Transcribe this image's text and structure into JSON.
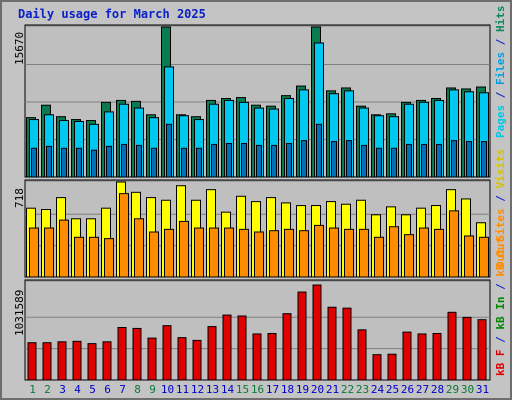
{
  "title": "Daily usage for March 2025",
  "colors": {
    "hits": "#0a8a5a",
    "files": "#00bff0",
    "sites": "#ff8c00",
    "visits": "#ffff00",
    "kbin": "#008800",
    "kbf": "#e00000",
    "pages": "#00c8e8",
    "panel_bg": "#bfbfbf",
    "title": "#0a20c8",
    "weekend_day": "#0a7a3a",
    "weekday_day": "#0000cc"
  },
  "legend_top": {
    "pages": "Pages",
    "sep1": " / ",
    "files": "Files",
    "sep2": " / ",
    "hits": "Hits"
  },
  "legend_mid": {
    "visits": "Visits",
    "sep1": " / ",
    "sites": "Sites",
    "sep2": " / "
  },
  "legend_bot": {
    "kbin": "kB In",
    "sep1": " / ",
    "kbf": "kB F",
    "sep2": " / "
  },
  "out_labels": {
    "sites_out": "Out ",
    "kb_out": "kB Out"
  },
  "chart_data": [
    {
      "type": "bar",
      "title": "Daily usage for March 2025",
      "panel": "hits-files-pages",
      "max_label": "15670",
      "ylim": [
        0,
        15670
      ],
      "categories": [
        "1",
        "2",
        "3",
        "4",
        "5",
        "6",
        "7",
        "8",
        "9",
        "10",
        "11",
        "12",
        "13",
        "14",
        "15",
        "16",
        "17",
        "18",
        "19",
        "20",
        "21",
        "22",
        "23",
        "24",
        "25",
        "26",
        "27",
        "28",
        "29",
        "30",
        "31"
      ],
      "weekend": [
        1,
        2,
        8,
        9,
        15,
        16,
        22,
        23,
        29,
        30
      ],
      "series": [
        {
          "name": "Hits",
          "values": [
            6200,
            7500,
            6300,
            6000,
            5900,
            7800,
            8000,
            7900,
            6500,
            15670,
            6500,
            6300,
            8000,
            8200,
            8300,
            7500,
            7400,
            8500,
            9500,
            15670,
            9000,
            9300,
            7400,
            6500,
            6600,
            7800,
            8000,
            8200,
            9300,
            9200,
            9400
          ]
        },
        {
          "name": "Files",
          "values": [
            6000,
            6500,
            5900,
            5800,
            5500,
            6800,
            7600,
            7200,
            6200,
            11500,
            6400,
            6000,
            7600,
            8000,
            7800,
            7200,
            7100,
            8200,
            9100,
            14000,
            8700,
            9000,
            7200,
            6400,
            6300,
            7600,
            7800,
            8000,
            9100,
            8900,
            8800
          ]
        },
        {
          "name": "Pages",
          "values": [
            3000,
            3200,
            3000,
            3000,
            2800,
            3200,
            3400,
            3300,
            3000,
            5500,
            3000,
            3000,
            3400,
            3500,
            3500,
            3300,
            3300,
            3500,
            3800,
            5500,
            3700,
            3800,
            3300,
            3000,
            3000,
            3400,
            3400,
            3400,
            3800,
            3700,
            3700
          ]
        }
      ]
    },
    {
      "type": "bar",
      "panel": "visits-sites",
      "max_label": "718",
      "ylim": [
        0,
        718
      ],
      "categories": [
        "1",
        "2",
        "3",
        "4",
        "5",
        "6",
        "7",
        "8",
        "9",
        "10",
        "11",
        "12",
        "13",
        "14",
        "15",
        "16",
        "17",
        "18",
        "19",
        "20",
        "21",
        "22",
        "23",
        "24",
        "25",
        "26",
        "27",
        "28",
        "29",
        "30",
        "31"
      ],
      "series": [
        {
          "name": "Visits",
          "values": [
            520,
            510,
            600,
            440,
            440,
            520,
            718,
            640,
            600,
            580,
            690,
            580,
            660,
            490,
            610,
            570,
            600,
            560,
            540,
            540,
            570,
            550,
            580,
            470,
            530,
            470,
            520,
            540,
            660,
            590,
            410
          ]
        },
        {
          "name": "Sites",
          "values": [
            370,
            370,
            430,
            300,
            300,
            290,
            630,
            440,
            340,
            360,
            420,
            370,
            370,
            370,
            360,
            340,
            350,
            360,
            350,
            390,
            370,
            360,
            360,
            300,
            380,
            320,
            370,
            360,
            500,
            310,
            300
          ]
        }
      ]
    },
    {
      "type": "bar",
      "panel": "kbin-kbf",
      "max_label": "1031589",
      "ylim": [
        0,
        1031589
      ],
      "categories": [
        "1",
        "2",
        "3",
        "4",
        "5",
        "6",
        "7",
        "8",
        "9",
        "10",
        "11",
        "12",
        "13",
        "14",
        "15",
        "16",
        "17",
        "18",
        "19",
        "20",
        "21",
        "22",
        "23",
        "24",
        "25",
        "26",
        "27",
        "28",
        "29",
        "30",
        "31"
      ],
      "series": [
        {
          "name": "kB F",
          "values": [
            405000,
            405000,
            415000,
            420000,
            395000,
            415000,
            570000,
            560000,
            455000,
            590000,
            460000,
            430000,
            580000,
            705000,
            695000,
            500000,
            505000,
            720000,
            955000,
            1031589,
            790000,
            780000,
            545000,
            275000,
            280000,
            520000,
            500000,
            505000,
            735000,
            680000,
            655000
          ]
        },
        {
          "name": "kB In",
          "values": [
            0,
            0,
            0,
            0,
            0,
            0,
            0,
            0,
            0,
            0,
            0,
            0,
            0,
            0,
            0,
            0,
            0,
            0,
            0,
            0,
            0,
            0,
            0,
            0,
            0,
            0,
            0,
            0,
            0,
            0,
            0
          ]
        }
      ]
    }
  ]
}
